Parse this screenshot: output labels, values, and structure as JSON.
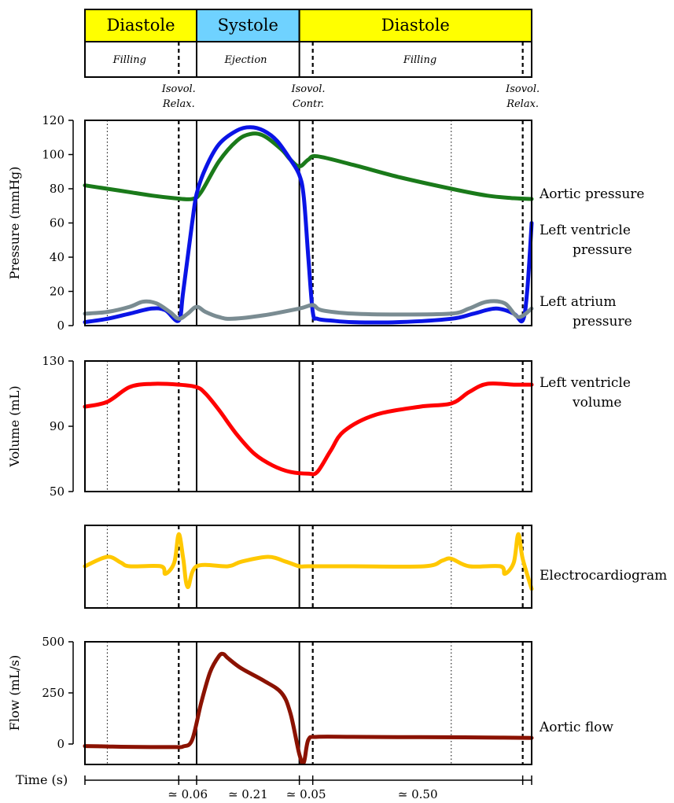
{
  "phases": {
    "top": [
      {
        "label": "Diastole",
        "color": "#ffff00",
        "t0": 0.0,
        "t1": 0.25
      },
      {
        "label": "Systole",
        "color": "#6fd2ff",
        "t0": 0.25,
        "t1": 0.48
      },
      {
        "label": "Diastole",
        "color": "#ffff00",
        "t0": 0.48,
        "t1": 1.0
      }
    ],
    "sub": [
      {
        "label": "Filling",
        "tc": 0.1
      },
      {
        "label": "Ejection",
        "tc": 0.36
      },
      {
        "label": "Filling",
        "tc": 0.75
      }
    ],
    "events": [
      {
        "line1": "Isovol.",
        "line2": "Relax.",
        "t": 0.21
      },
      {
        "line1": "Isovol.",
        "line2": "Contr.",
        "t": 0.5
      },
      {
        "line1": "Isovol.",
        "line2": "Relax.",
        "t": 0.98
      }
    ]
  },
  "markers": {
    "dotted": [
      0.05,
      0.82
    ],
    "dashed": [
      0.21,
      0.51,
      0.98
    ],
    "solid": [
      0.25,
      0.48
    ]
  },
  "chart_data": [
    {
      "type": "line",
      "ylabel": "Pressure (mmHg)",
      "ylim": [
        0,
        120
      ],
      "yticks": [
        0,
        20,
        40,
        60,
        80,
        100,
        120
      ],
      "x_units": "fraction of cycle",
      "series": [
        {
          "name": "Aortic pressure",
          "color": "#1a7a1a",
          "x": [
            0,
            0.05,
            0.1,
            0.15,
            0.2,
            0.24,
            0.26,
            0.3,
            0.34,
            0.37,
            0.4,
            0.44,
            0.46,
            0.48,
            0.5,
            0.52,
            0.6,
            0.7,
            0.82,
            0.9,
            0.96,
            1.0
          ],
          "y": [
            82,
            80,
            78,
            76,
            74.5,
            74,
            78,
            96,
            108,
            112,
            111,
            103,
            97,
            93,
            97,
            99,
            94,
            87,
            80,
            76,
            74.5,
            74
          ]
        },
        {
          "name": "Left ventricle pressure",
          "color": "#0a14e6",
          "x": [
            0,
            0.05,
            0.1,
            0.15,
            0.18,
            0.21,
            0.22,
            0.24,
            0.25,
            0.27,
            0.3,
            0.34,
            0.37,
            0.4,
            0.43,
            0.46,
            0.48,
            0.49,
            0.5,
            0.51,
            0.52,
            0.55,
            0.6,
            0.7,
            0.82,
            0.87,
            0.92,
            0.96,
            0.98,
            0.99,
            1.0
          ],
          "y": [
            2,
            4,
            7,
            10,
            9,
            3,
            20,
            60,
            77,
            92,
            106,
            114,
            116,
            114,
            108,
            97,
            88,
            75,
            40,
            8,
            4,
            3,
            2,
            2,
            4,
            7,
            10,
            7,
            3,
            20,
            60
          ]
        },
        {
          "name": "Left atrium pressure",
          "color": "#7a8c92",
          "x": [
            0,
            0.05,
            0.1,
            0.13,
            0.16,
            0.19,
            0.21,
            0.23,
            0.25,
            0.27,
            0.3,
            0.33,
            0.4,
            0.48,
            0.51,
            0.53,
            0.6,
            0.7,
            0.82,
            0.86,
            0.9,
            0.94,
            0.97,
            1.0
          ],
          "y": [
            7,
            8,
            11,
            14,
            13,
            8,
            4,
            7,
            11,
            8,
            5,
            4,
            6,
            10,
            12,
            9,
            7,
            6.5,
            7,
            10,
            14,
            13,
            5,
            10
          ]
        }
      ]
    },
    {
      "type": "line",
      "ylabel": "Volume (mL)",
      "ylim": [
        50,
        130
      ],
      "yticks": [
        50,
        90,
        130
      ],
      "x_units": "fraction of cycle",
      "series": [
        {
          "name": "Left ventricle volume",
          "color": "#ff0000",
          "x": [
            0,
            0.05,
            0.1,
            0.15,
            0.21,
            0.25,
            0.27,
            0.3,
            0.34,
            0.38,
            0.42,
            0.46,
            0.5,
            0.52,
            0.55,
            0.58,
            0.65,
            0.75,
            0.82,
            0.86,
            0.9,
            0.96,
            1.0
          ],
          "y": [
            102,
            105,
            114,
            116,
            115.5,
            114,
            110,
            100,
            85,
            73,
            66,
            62,
            61,
            62,
            75,
            87,
            97,
            102,
            104,
            111,
            116,
            115.5,
            115.5
          ]
        }
      ]
    },
    {
      "type": "line",
      "ylabel": "",
      "ylim": [
        -1,
        1
      ],
      "yticks": [],
      "x_units": "fraction of cycle",
      "series": [
        {
          "name": "Electrocardiogram",
          "color": "#ffc800",
          "x": [
            0,
            0.05,
            0.08,
            0.1,
            0.17,
            0.18,
            0.2,
            0.21,
            0.22,
            0.23,
            0.25,
            0.32,
            0.35,
            0.41,
            0.45,
            0.48,
            0.5,
            0.6,
            0.76,
            0.8,
            0.82,
            0.86,
            0.93,
            0.94,
            0.96,
            0.97,
            0.98,
            1.0
          ],
          "y": [
            0,
            0.25,
            0.1,
            0,
            0,
            -0.2,
            0.1,
            0.85,
            0.2,
            -0.55,
            0,
            0,
            0.12,
            0.25,
            0.12,
            0,
            0,
            0,
            0,
            0.15,
            0.2,
            0,
            0,
            -0.2,
            0.1,
            0.85,
            0.2,
            -0.6
          ]
        }
      ]
    },
    {
      "type": "line",
      "ylabel": "Flow (mL/s)",
      "ylim": [
        -100,
        500
      ],
      "yticks": [
        0,
        250,
        500
      ],
      "x_units": "fraction of cycle",
      "series": [
        {
          "name": "Aortic flow",
          "color": "#8b1200",
          "x": [
            0,
            0.05,
            0.1,
            0.2,
            0.22,
            0.24,
            0.26,
            0.28,
            0.3,
            0.31,
            0.32,
            0.35,
            0.4,
            0.44,
            0.46,
            0.48,
            0.49,
            0.5,
            0.52,
            0.6,
            0.7,
            0.8,
            0.9,
            1.0
          ],
          "y": [
            -10,
            -12,
            -14,
            -15,
            -12,
            20,
            200,
            350,
            430,
            440,
            420,
            370,
            310,
            250,
            150,
            -50,
            -90,
            20,
            35,
            35,
            34,
            33,
            32,
            30
          ]
        }
      ]
    }
  ],
  "series_labels": [
    {
      "panel": 0,
      "lines": [
        "Aortic pressure"
      ]
    },
    {
      "panel": 0,
      "lines": [
        "Left ventricle",
        "pressure"
      ]
    },
    {
      "panel": 0,
      "lines": [
        "Left atrium",
        "pressure"
      ]
    },
    {
      "panel": 1,
      "lines": [
        "Left ventricle",
        "volume"
      ]
    },
    {
      "panel": 2,
      "lines": [
        "Electrocardiogram"
      ]
    },
    {
      "panel": 3,
      "lines": [
        "Aortic flow"
      ]
    }
  ],
  "time_axis": {
    "label": "Time (s)",
    "segments": [
      "≃ 0.06",
      "≃ 0.21",
      "≃ 0.05",
      "≃ 0.50"
    ]
  }
}
